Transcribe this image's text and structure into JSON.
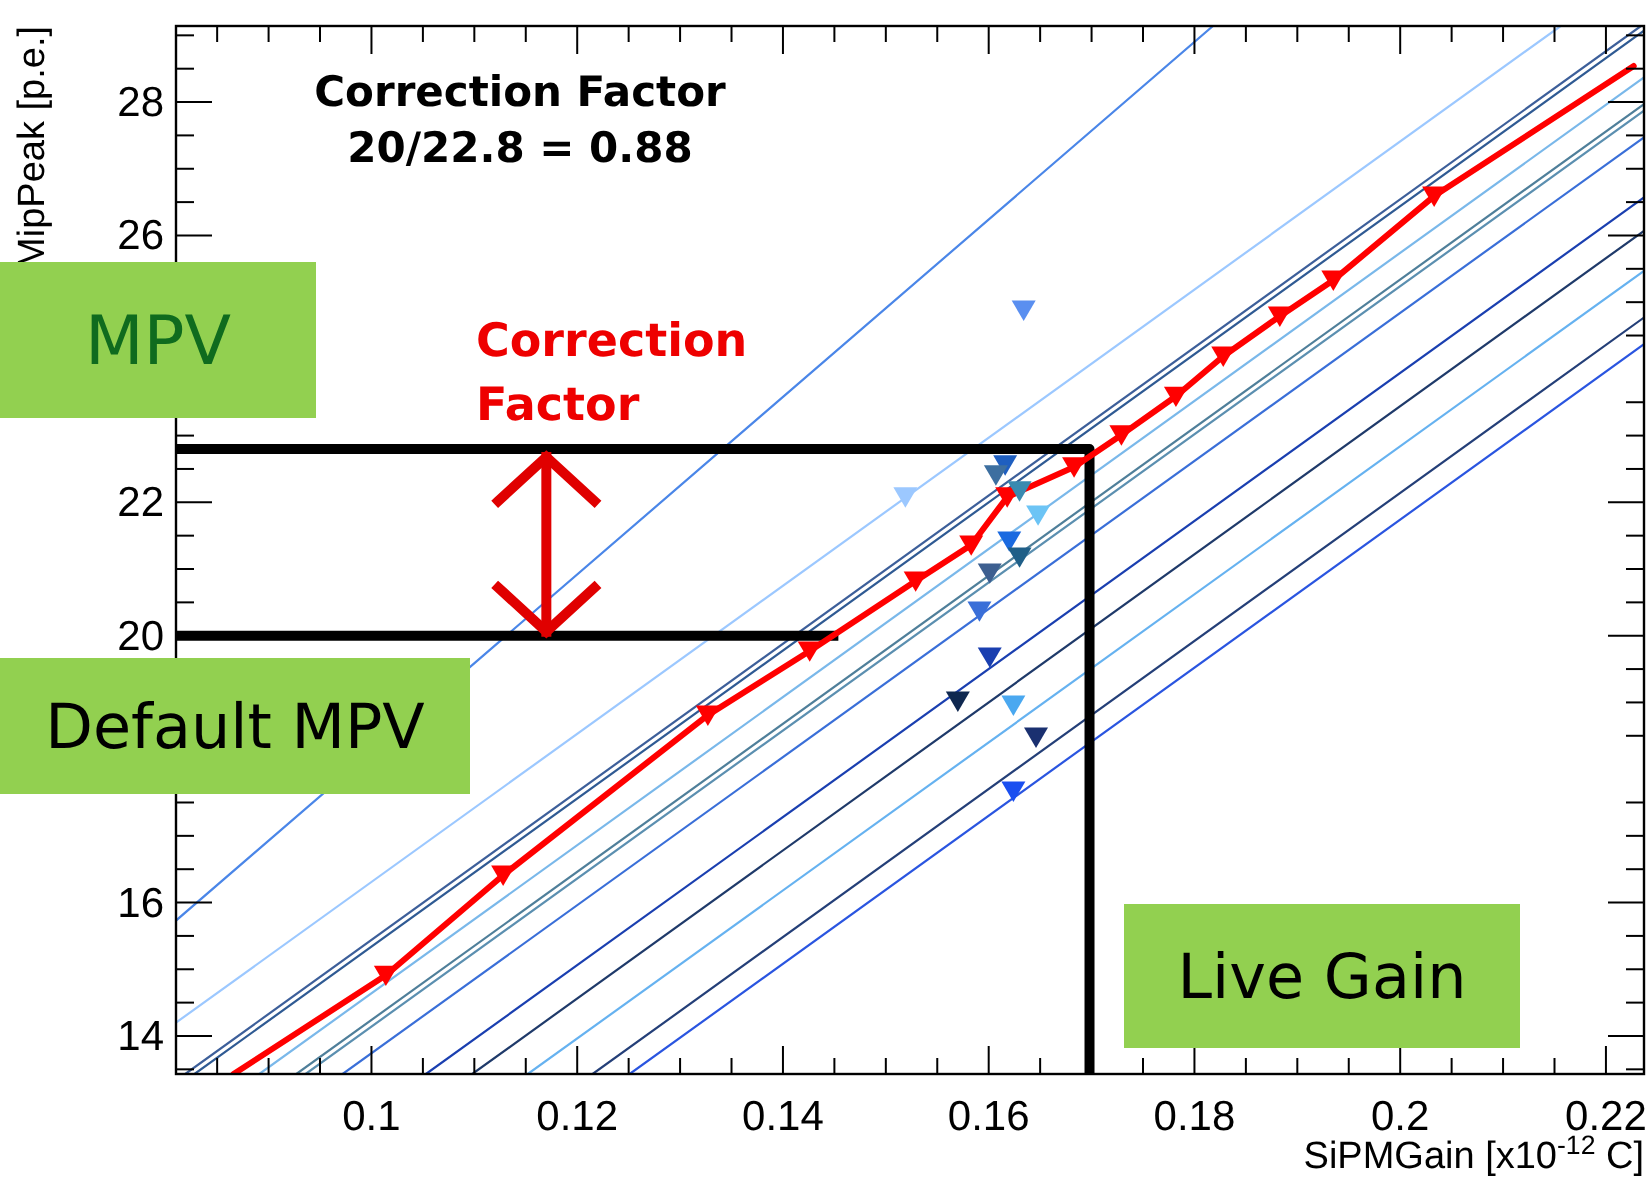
{
  "chart_data": {
    "type": "line",
    "xlabel": "SiPMGain [x10$^{-12}$ C]",
    "ylabel": "MipPeak [p.e.]",
    "xlim": [
      0.081,
      0.2237
    ],
    "ylim": [
      13.43,
      29.14
    ],
    "xticks": [
      {
        "value": 0.085,
        "label": null
      },
      {
        "value": 0.09,
        "label": null
      },
      {
        "value": 0.095,
        "label": null
      },
      0.1,
      {
        "value": 0.105,
        "label": null
      },
      {
        "value": 0.11,
        "label": null
      },
      {
        "value": 0.115,
        "label": null
      },
      0.12,
      {
        "value": 0.125,
        "label": null
      },
      {
        "value": 0.13,
        "label": null
      },
      {
        "value": 0.135,
        "label": null
      },
      0.14,
      {
        "value": 0.145,
        "label": null
      },
      {
        "value": 0.15,
        "label": null
      },
      {
        "value": 0.155,
        "label": null
      },
      0.16,
      {
        "value": 0.165,
        "label": null
      },
      {
        "value": 0.17,
        "label": null
      },
      {
        "value": 0.175,
        "label": null
      },
      0.18,
      {
        "value": 0.185,
        "label": null
      },
      {
        "value": 0.19,
        "label": null
      },
      {
        "value": 0.195,
        "label": null
      },
      0.2,
      {
        "value": 0.205,
        "label": null
      },
      {
        "value": 0.21,
        "label": null
      },
      {
        "value": 0.215,
        "label": null
      },
      0.22
    ],
    "yticks": [
      {
        "value": 13.5,
        "label": null
      },
      14,
      {
        "value": 14.5,
        "label": null
      },
      {
        "value": 15,
        "label": null
      },
      {
        "value": 15.5,
        "label": null
      },
      16,
      {
        "value": 16.5,
        "label": null
      },
      {
        "value": 17,
        "label": null
      },
      {
        "value": 17.5,
        "label": null
      },
      {
        "value": 18.5,
        "label": null
      },
      {
        "value": 19,
        "label": null
      },
      {
        "value": 19.5,
        "label": null
      },
      20,
      {
        "value": 20.5,
        "label": null
      },
      {
        "value": 21,
        "label": null
      },
      {
        "value": 21.5,
        "label": null
      },
      22,
      {
        "value": 22.5,
        "label": null
      },
      {
        "value": 23,
        "label": null
      },
      {
        "value": 23.5,
        "label": null
      },
      {
        "value": 24.5,
        "label": null
      },
      {
        "value": 25,
        "label": null
      },
      {
        "value": 25.5,
        "label": null
      },
      26,
      {
        "value": 26.5,
        "label": null
      },
      {
        "value": 27,
        "label": null
      },
      {
        "value": 27.5,
        "label": null
      },
      28,
      {
        "value": 28.5,
        "label": null
      },
      {
        "value": 29,
        "label": null
      }
    ],
    "grid": false,
    "annotations": [
      "Correction Factor",
      "20/22.8 = 0.88",
      "MPV",
      {
        "text": "Correction Factor",
        "x": 0.117,
        "y": 22.8
      },
      "Default MPV",
      "Live Gain"
    ],
    "series": [
      {
        "type": "line",
        "color": "#4a86e8",
        "x": [
          0.081,
          0.1818
        ],
        "values": [
          15.73,
          29.14
        ]
      },
      {
        "type": "line",
        "color": "#9cc8ff",
        "x": [
          0.081,
          0.2156
        ],
        "values": [
          14.2,
          29.14
        ]
      },
      {
        "type": "line",
        "color": "#3d5f9a",
        "x": [
          0.0819,
          0.2234
        ],
        "values": [
          13.43,
          29.14
        ]
      },
      {
        "type": "line",
        "color": "#2f5a93",
        "x": [
          0.0828,
          0.2237
        ],
        "values": [
          13.43,
          29.07
        ]
      },
      {
        "type": "line",
        "color": "#7ab8ea",
        "x": [
          0.0891,
          0.2237
        ],
        "values": [
          13.43,
          28.37
        ]
      },
      {
        "type": "line",
        "color": "#4f7f9a",
        "x": [
          0.0927,
          0.2237
        ],
        "values": [
          13.43,
          27.97
        ]
      },
      {
        "type": "line",
        "color": "#5b8fb0",
        "x": [
          0.0936,
          0.2237
        ],
        "values": [
          13.43,
          27.87
        ]
      },
      {
        "type": "line",
        "color": "#3a6fd8",
        "x": [
          0.0972,
          0.2237
        ],
        "values": [
          13.43,
          27.47
        ]
      },
      {
        "type": "line",
        "color": "#1a3fb0",
        "x": [
          0.1053,
          0.2237
        ],
        "values": [
          13.43,
          26.57
        ]
      },
      {
        "type": "line",
        "color": "#1f3a6a",
        "x": [
          0.1098,
          0.2237
        ],
        "values": [
          13.43,
          26.07
        ]
      },
      {
        "type": "line",
        "color": "#66b2f0",
        "x": [
          0.1152,
          0.2237
        ],
        "values": [
          13.43,
          25.47
        ]
      },
      {
        "type": "line",
        "color": "#243f78",
        "x": [
          0.1215,
          0.2237
        ],
        "values": [
          13.43,
          24.77
        ]
      },
      {
        "type": "line",
        "color": "#2a55e0",
        "x": [
          0.1251,
          0.2237
        ],
        "values": [
          13.43,
          24.37
        ]
      },
      {
        "type": "line",
        "color": "#000000",
        "x": [
          0.081,
          0.1698,
          0.1698
        ],
        "values": [
          22.8,
          22.8,
          13.43
        ]
      },
      {
        "type": "line",
        "color": "#000000",
        "x": [
          0.081,
          0.1449
        ],
        "values": [
          20,
          20
        ]
      },
      {
        "type": "line",
        "color": "#ff0000",
        "x": [
          0.0866,
          0.1014,
          0.1128,
          0.1327,
          0.1426,
          0.1529,
          0.1583,
          0.1618,
          0.1683,
          0.1729,
          0.1782,
          0.1828,
          0.1883,
          0.1935,
          0.2033,
          0.2227
        ],
        "values": [
          13.43,
          14.91,
          16.41,
          18.81,
          19.77,
          20.82,
          21.36,
          22.08,
          22.53,
          23.01,
          23.59,
          24.19,
          24.79,
          25.33,
          26.59,
          28.54
        ]
      },
      {
        "type": "scatter",
        "marker": "triangle",
        "color": "#ff0000",
        "x": [
          0.1014,
          0.1128,
          0.1327,
          0.1426,
          0.1529,
          0.1583,
          0.1618,
          0.1683,
          0.1729,
          0.1782,
          0.1828,
          0.1883,
          0.1935,
          0.2033
        ],
        "values": [
          14.91,
          16.41,
          18.81,
          19.77,
          20.82,
          21.36,
          22.08,
          22.53,
          23.01,
          23.59,
          24.19,
          24.79,
          25.33,
          26.59
        ]
      },
      {
        "type": "scatter",
        "marker": "triangle",
        "colors": [
          "#9cc8ff",
          "#1f5fc0",
          "#3d6fa0",
          "#3a8ab0",
          "#6cc4f5",
          "#1a6ae0",
          "#1f5f88",
          "#3d5f90",
          "#3a6fd8",
          "#1a3fb0",
          "#0f2850",
          "#4aa8f0",
          "#1a3070",
          "#1a4ff0",
          "#5a8ff0"
        ],
        "x": [
          0.1519,
          0.1616,
          0.1607,
          0.163,
          0.1648,
          0.162,
          0.163,
          0.1601,
          0.1591,
          0.1601,
          0.157,
          0.1624,
          0.1646,
          0.1624,
          0.1634
        ],
        "values": [
          22.08,
          22.56,
          22.41,
          22.17,
          21.81,
          21.42,
          21.18,
          20.94,
          20.37,
          19.68,
          19.02,
          18.96,
          18.48,
          17.67,
          24.88
        ]
      }
    ]
  }
}
